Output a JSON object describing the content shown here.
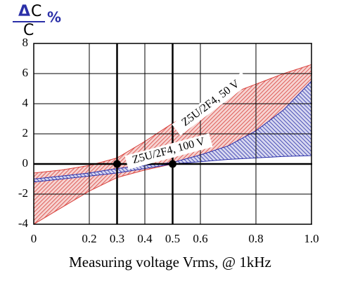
{
  "chart_data": {
    "type": "band",
    "y_label_delta": "Δ",
    "y_label_numerator": "C",
    "y_label_denominator": "C",
    "y_label_unit": "%",
    "x_label": "Measuring voltage Vrms, @ 1kHz",
    "x": [
      0,
      0.1,
      0.2,
      0.3,
      0.4,
      0.5,
      0.6,
      0.7,
      0.8,
      0.9,
      1.0
    ],
    "series": [
      {
        "name": "Z5U/2F4, 50 V",
        "color": "#d9413c",
        "upper": [
          -0.6,
          -0.4,
          -0.1,
          0.4,
          1.5,
          2.7,
          3.7,
          4.6,
          5.3,
          6.0,
          6.6
        ],
        "lower": [
          -4.0,
          -2.9,
          -1.8,
          -0.9,
          -0.4,
          0,
          0.5,
          1.1,
          2.0,
          3.3,
          5.0
        ]
      },
      {
        "name": "Z5U/2F4, 100 V",
        "color": "#2a2fa8",
        "upper": [
          -1.0,
          -0.8,
          -0.6,
          -0.3,
          -0.1,
          0.1,
          0.6,
          1.2,
          2.2,
          3.6,
          5.5
        ],
        "lower": [
          -1.2,
          -1.0,
          -0.8,
          -0.6,
          -0.3,
          0,
          0.15,
          0.3,
          0.4,
          0.5,
          0.55
        ]
      }
    ],
    "markers_x": [
      0.3,
      0.5
    ],
    "markers_y": [
      0,
      0
    ],
    "xlim": [
      0,
      1
    ],
    "ylim": [
      -4,
      8
    ],
    "xticks": [
      0,
      0.2,
      0.3,
      0.4,
      0.5,
      0.6,
      0.8,
      {
        "value": 1,
        "label": "1.0"
      }
    ],
    "yticks": [
      -4,
      -2,
      0,
      2,
      4,
      6,
      8
    ],
    "grid": true
  }
}
